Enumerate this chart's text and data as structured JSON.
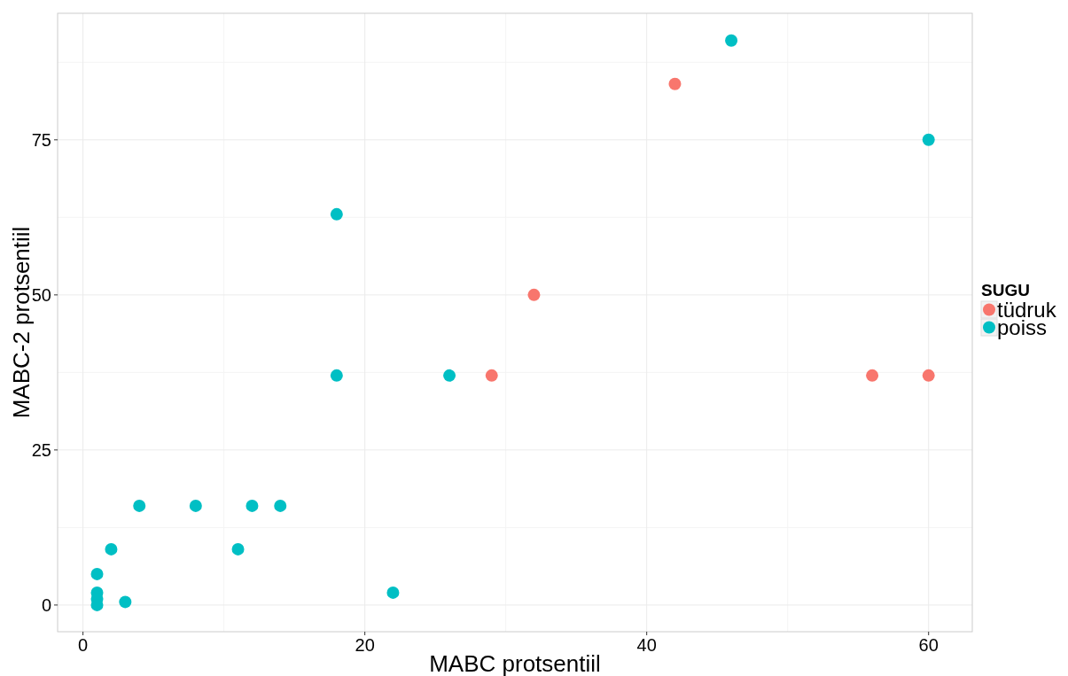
{
  "chart_data": {
    "type": "scatter",
    "xlabel": "MABC protsentiil",
    "ylabel": "MABC-2 protsentiil",
    "legend_title": "SUGU",
    "legend": "right",
    "grid": true,
    "marker": "circle",
    "xlim": [
      -1.8,
      63.1
    ],
    "ylim": [
      -4.3,
      95.4
    ],
    "xticks": [
      0,
      20,
      40,
      60
    ],
    "yticks": [
      0,
      25,
      50,
      75
    ],
    "series": [
      {
        "name": "tüdruk",
        "color": "#f8766d",
        "x": [
          42,
          32,
          29,
          56,
          60
        ],
        "values": [
          84,
          50,
          37,
          37,
          37
        ]
      },
      {
        "name": "poiss",
        "color": "#00bfc4",
        "x": [
          46,
          60,
          18,
          18,
          26,
          4,
          8,
          12,
          14,
          2,
          11,
          22,
          1,
          1,
          1,
          1,
          3
        ],
        "values": [
          91,
          75,
          63,
          37,
          37,
          16,
          16,
          16,
          16,
          9,
          9,
          2,
          5,
          2,
          1,
          0,
          0.5
        ]
      }
    ]
  }
}
